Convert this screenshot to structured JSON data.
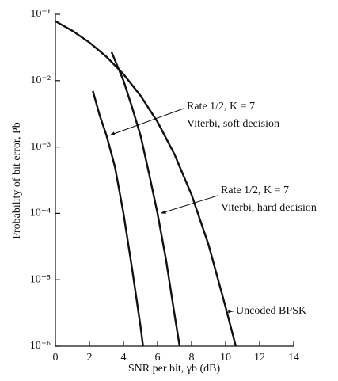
{
  "chart_data": {
    "type": "line",
    "x_label": "SNR per bit, γb (dB)",
    "y_label": "Probability of bit error, Pb",
    "log_y": true,
    "xlim": [
      0,
      14
    ],
    "xticks": [
      0,
      2,
      4,
      6,
      8,
      10,
      12,
      14
    ],
    "ylim": [
      1e-06,
      0.1
    ],
    "yticks": [
      {
        "value": 0.1,
        "label": "10⁻¹"
      },
      {
        "value": 0.01,
        "label": "10⁻²"
      },
      {
        "value": 0.001,
        "label": "10⁻³"
      },
      {
        "value": 0.0001,
        "label": "10⁻⁴"
      },
      {
        "value": 1e-05,
        "label": "10⁻⁵"
      },
      {
        "value": 1e-06,
        "label": "10⁻⁶"
      }
    ],
    "series": [
      {
        "color": "#111111",
        "labels": [
          "Rate 1/2, K = 7",
          "Viterbi, soft decision"
        ],
        "x": [
          2.2,
          2.6,
          3,
          3.5,
          4,
          4.5,
          5,
          5.15
        ],
        "values": [
          0.007,
          0.003,
          0.0015,
          0.0005,
          0.0001,
          1.5e-05,
          2e-06,
          1e-06
        ]
      },
      {
        "color": "#111111",
        "labels": [
          "Rate 1/2, K = 7",
          "Viterbi, hard decision"
        ],
        "x": [
          3.3,
          4,
          4.5,
          5,
          5.5,
          6,
          6.5,
          7,
          7.3
        ],
        "values": [
          0.027,
          0.01,
          0.004,
          0.0015,
          0.0004,
          0.0001,
          2e-05,
          3e-06,
          1e-06
        ]
      },
      {
        "name": "Uncoded BPSK",
        "color": "#111111",
        "labels": [
          "Uncoded BPSK"
        ],
        "x": [
          0,
          1,
          2,
          3,
          4,
          5,
          6,
          7,
          8,
          9,
          10,
          10.6
        ],
        "values": [
          0.0786,
          0.0563,
          0.0375,
          0.0229,
          0.0125,
          0.00595,
          0.00239,
          0.000773,
          0.000191,
          3.36e-05,
          3.87e-06,
          1e-06
        ]
      }
    ]
  }
}
